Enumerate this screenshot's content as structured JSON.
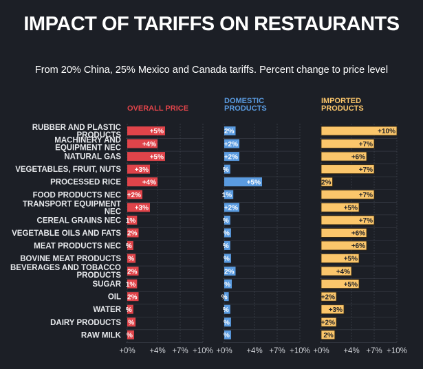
{
  "title": "IMPACT OF TARIFFS ON RESTAURANTS",
  "subtitle": "From 20% China, 25% Mexico and Canada tariffs. Percent change to price level",
  "colors": {
    "background": "#1c1f26",
    "overall": "#e0444a",
    "domestic": "#5a9be0",
    "imported": "#fbc66b",
    "grid": "#3c414b"
  },
  "chart_data": {
    "type": "bar",
    "orientation": "horizontal",
    "title": "IMPACT OF TARIFFS ON RESTAURANTS",
    "subtitle": "From 20% China, 25% Mexico and Canada tariffs. Percent change to price level",
    "categories": [
      "RUBBER AND PLASTIC PRODUCTS",
      "MACHINERY AND EQUIPMENT NEC",
      "NATURAL GAS",
      "VEGETABLES, FRUIT, NUTS",
      "PROCESSED RICE",
      "FOOD PRODUCTS NEC",
      "TRANSPORT EQUIPMENT NEC",
      "CEREAL GRAINS NEC",
      "VEGETABLE OILS AND FATS",
      "MEAT PRODUCTS NEC",
      "BOVINE MEAT PRODUCTS",
      "BEVERAGES AND TOBACCO PRODUCTS",
      "SUGAR",
      "OIL",
      "WATER",
      "DAIRY PRODUCTS",
      "RAW MILK"
    ],
    "category_lines": [
      [
        "RUBBER AND PLASTIC",
        "PRODUCTS"
      ],
      [
        "MACHINERY AND",
        "EQUIPMENT NEC"
      ],
      [
        "NATURAL GAS"
      ],
      [
        "VEGETABLES, FRUIT, NUTS"
      ],
      [
        "PROCESSED RICE"
      ],
      [
        "FOOD PRODUCTS NEC"
      ],
      [
        "TRANSPORT EQUIPMENT",
        "NEC"
      ],
      [
        "CEREAL GRAINS NEC"
      ],
      [
        "VEGETABLE OILS AND FATS"
      ],
      [
        "MEAT PRODUCTS NEC"
      ],
      [
        "BOVINE MEAT PRODUCTS"
      ],
      [
        "BEVERAGES AND TOBACCO",
        "PRODUCTS"
      ],
      [
        "SUGAR"
      ],
      [
        "OIL"
      ],
      [
        "WATER"
      ],
      [
        "DAIRY PRODUCTS"
      ],
      [
        "RAW MILK"
      ]
    ],
    "xlim": [
      0,
      10
    ],
    "x_ticks": [
      "+0%",
      "+4%",
      "+7%",
      "+10%"
    ],
    "x_tick_values": [
      0,
      4,
      7,
      10
    ],
    "grid": true,
    "series": [
      {
        "name": "OVERALL PRICE",
        "header_lines": [
          "OVERALL PRICE"
        ],
        "values": [
          5,
          4,
          5,
          3,
          4,
          2,
          3,
          1.3,
          1.5,
          0.8,
          1.1,
          1.5,
          1.3,
          1.5,
          0.8,
          1.1,
          0.9
        ],
        "labels": [
          "+5%",
          "+4%",
          "+5%",
          "+3%",
          "+4%",
          "+2%",
          "+3%",
          "1%",
          "2%",
          "%",
          "%",
          "2%",
          "1%",
          "2%",
          "%",
          "%",
          "%"
        ]
      },
      {
        "name": "DOMESTIC PRODUCTS",
        "header_lines": [
          "DOMESTIC",
          "PRODUCTS"
        ],
        "values": [
          1.5,
          2,
          2,
          0.8,
          5,
          1.2,
          2,
          0.8,
          0.9,
          0.8,
          0.9,
          1.5,
          1.0,
          0.6,
          0.8,
          0.9,
          0.9
        ],
        "labels": [
          "2%",
          "+2%",
          "+2%",
          "%",
          "+5%",
          "1%",
          "+2%",
          "%",
          "%",
          "%",
          "%",
          "2%",
          "%",
          "%",
          "%",
          "%",
          "%"
        ]
      },
      {
        "name": "IMPORTED PRODUCTS",
        "header_lines": [
          "IMPORTED",
          "PRODUCTS"
        ],
        "values": [
          10,
          7,
          6,
          7,
          1.5,
          7,
          5,
          7,
          6,
          6,
          5,
          4,
          5,
          2,
          3,
          2,
          1.8
        ],
        "labels": [
          "+10%",
          "+7%",
          "+6%",
          "+7%",
          "2%",
          "+7%",
          "+5%",
          "+7%",
          "+6%",
          "+6%",
          "+5%",
          "+4%",
          "+5%",
          "+2%",
          "+3%",
          "+2%",
          "2%"
        ]
      }
    ]
  }
}
